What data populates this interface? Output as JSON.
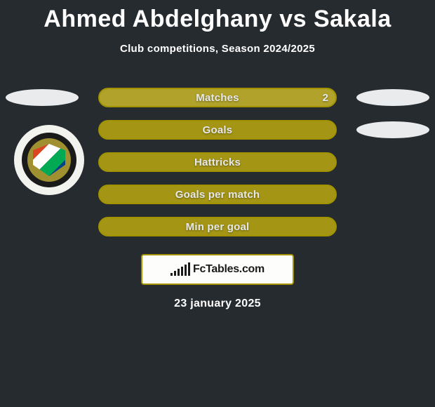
{
  "title": "Ahmed Abdelghany vs Sakala",
  "subtitle": "Club competitions, Season 2024/2025",
  "date": "23 january 2025",
  "brand": "FcTables.com",
  "colors": {
    "background": "#262b30",
    "bar_fill": "#a49515",
    "bar_fill_first": "#b0a22a",
    "bar_border": "#a29300",
    "text": "#ffffff",
    "oval": "#e9ebec",
    "banner_bg": "#fdfdfb"
  },
  "stats": [
    {
      "label": "Matches",
      "value_right": "2",
      "show_left_oval": true,
      "show_right_oval": true,
      "first": true
    },
    {
      "label": "Goals",
      "show_right_oval": true
    },
    {
      "label": "Hattricks"
    },
    {
      "label": "Goals per match"
    },
    {
      "label": "Min per goal"
    }
  ],
  "left_badge": {
    "outer_color": "#f2f2ef",
    "mid_color": "#1a1a1a",
    "inner_color": "#a09030"
  },
  "fc_bars_heights": [
    4,
    7,
    10,
    13,
    16,
    19
  ]
}
